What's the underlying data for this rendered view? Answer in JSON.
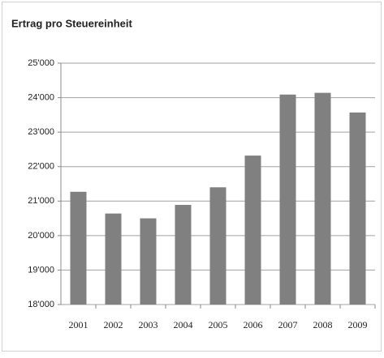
{
  "chart_data": {
    "type": "bar",
    "title": "Ertrag pro Steuereinheit",
    "categories": [
      "2001",
      "2002",
      "2003",
      "2004",
      "2005",
      "2006",
      "2007",
      "2008",
      "2009"
    ],
    "values": [
      21270,
      20640,
      20500,
      20890,
      21400,
      22320,
      24090,
      24140,
      23570
    ],
    "color": "#808080",
    "ylim": [
      18000,
      25000
    ],
    "yticks": [
      {
        "value": 18000,
        "label": "18'000"
      },
      {
        "value": 19000,
        "label": "19'000"
      },
      {
        "value": 20000,
        "label": "20'000"
      },
      {
        "value": 21000,
        "label": "21'000"
      },
      {
        "value": 22000,
        "label": "22'000"
      },
      {
        "value": 23000,
        "label": "23'000"
      },
      {
        "value": 24000,
        "label": "24'000"
      },
      {
        "value": 25000,
        "label": "25'000"
      }
    ],
    "grid": true
  }
}
